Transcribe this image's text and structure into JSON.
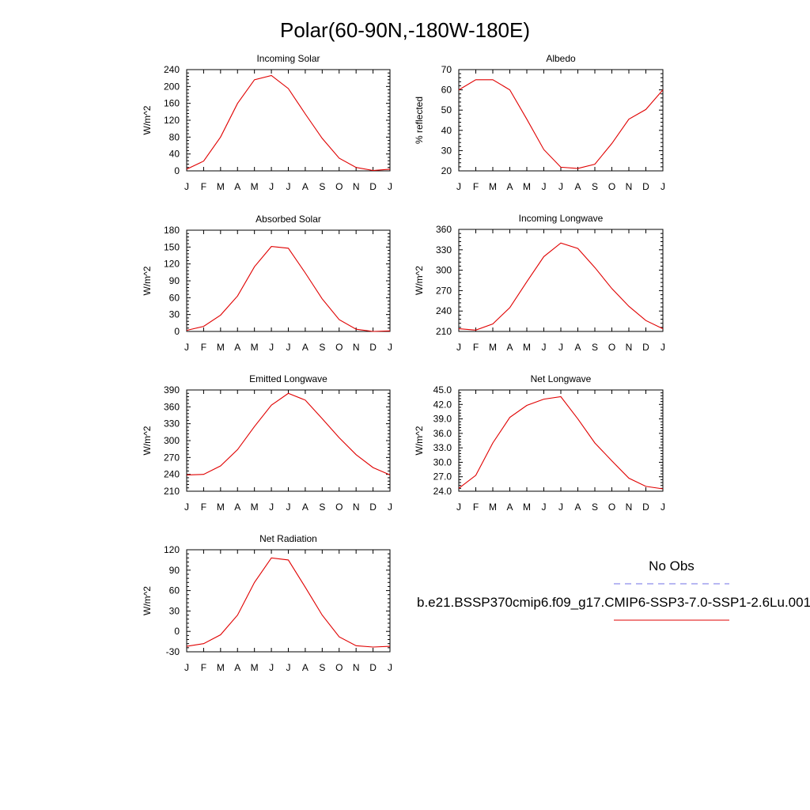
{
  "figure": {
    "title": "Polar(60-90N,-180W-180E)"
  },
  "legend": {
    "obs_label": "No Obs",
    "obs_color": "#6f6fe6",
    "model_label": "b.e21.BSSP370cmip6.f09_g17.CMIP6-SSP3-7.0-SSP1-2.6Lu.001",
    "model_color": "#e00000"
  },
  "chart_data": [
    {
      "type": "line",
      "title": "Incoming Solar",
      "ylabel": "W/m^2",
      "x": [
        "J",
        "F",
        "M",
        "A",
        "M",
        "J",
        "J",
        "A",
        "S",
        "O",
        "N",
        "D",
        "J"
      ],
      "ylim": [
        0,
        240
      ],
      "yticks": [
        "0",
        "40",
        "80",
        "120",
        "160",
        "200",
        "240"
      ],
      "series": [
        {
          "color": "#e00000",
          "values": [
            4,
            23,
            80,
            160,
            216,
            226,
            195,
            135,
            77,
            30,
            8,
            1,
            4
          ]
        }
      ]
    },
    {
      "type": "line",
      "title": "Albedo",
      "ylabel": "% reflected",
      "x": [
        "J",
        "F",
        "M",
        "A",
        "M",
        "J",
        "J",
        "A",
        "S",
        "O",
        "N",
        "D",
        "J"
      ],
      "ylim": [
        20,
        70
      ],
      "yticks": [
        "20",
        "30",
        "40",
        "50",
        "60",
        "70"
      ],
      "series": [
        {
          "color": "#e00000",
          "values": [
            60,
            65,
            65,
            60,
            45.5,
            30.5,
            21.8,
            21.2,
            23.3,
            33.5,
            45.5,
            50.3,
            60
          ]
        }
      ]
    },
    {
      "type": "line",
      "title": "Absorbed Solar",
      "ylabel": "W/m^2",
      "x": [
        "J",
        "F",
        "M",
        "A",
        "M",
        "J",
        "J",
        "A",
        "S",
        "O",
        "N",
        "D",
        "J"
      ],
      "ylim": [
        0,
        180
      ],
      "yticks": [
        "0",
        "30",
        "60",
        "90",
        "120",
        "150",
        "180"
      ],
      "series": [
        {
          "color": "#e00000",
          "values": [
            2,
            9,
            29,
            63,
            115,
            151,
            148,
            104,
            58,
            21,
            4,
            0,
            1
          ]
        }
      ]
    },
    {
      "type": "line",
      "title": "Incoming Longwave",
      "ylabel": "W/m^2",
      "x": [
        "J",
        "F",
        "M",
        "A",
        "M",
        "J",
        "J",
        "A",
        "S",
        "O",
        "N",
        "D",
        "J"
      ],
      "ylim": [
        210,
        360
      ],
      "yticks": [
        "210",
        "240",
        "270",
        "300",
        "330",
        "360"
      ],
      "series": [
        {
          "color": "#e00000",
          "values": [
            214,
            212,
            221,
            245,
            283,
            320,
            340,
            332,
            304,
            273,
            247,
            226,
            214
          ]
        }
      ]
    },
    {
      "type": "line",
      "title": "Emitted Longwave",
      "ylabel": "W/m^2",
      "x": [
        "J",
        "F",
        "M",
        "A",
        "M",
        "J",
        "J",
        "A",
        "S",
        "O",
        "N",
        "D",
        "J"
      ],
      "ylim": [
        210,
        390
      ],
      "yticks": [
        "210",
        "240",
        "270",
        "300",
        "330",
        "360",
        "390"
      ],
      "series": [
        {
          "color": "#e00000",
          "values": [
            239,
            240,
            255,
            284,
            325,
            363,
            384,
            372,
            339,
            305,
            275,
            252,
            239
          ]
        }
      ]
    },
    {
      "type": "line",
      "title": "Net Longwave",
      "ylabel": "W/m^2",
      "x": [
        "J",
        "F",
        "M",
        "A",
        "M",
        "J",
        "J",
        "A",
        "S",
        "O",
        "N",
        "D",
        "J"
      ],
      "ylim": [
        24,
        45
      ],
      "yticks": [
        "24.0",
        "27.0",
        "30.0",
        "33.0",
        "36.0",
        "39.0",
        "42.0",
        "45.0"
      ],
      "series": [
        {
          "color": "#e00000",
          "values": [
            24.6,
            27.3,
            34.0,
            39.3,
            41.8,
            43.1,
            43.6,
            39.0,
            34.0,
            30.3,
            26.7,
            25.0,
            24.5
          ]
        }
      ]
    },
    {
      "type": "line",
      "title": "Net Radiation",
      "ylabel": "W/m^2",
      "x": [
        "J",
        "F",
        "M",
        "A",
        "M",
        "J",
        "J",
        "A",
        "S",
        "O",
        "N",
        "D",
        "J"
      ],
      "ylim": [
        -30,
        120
      ],
      "yticks": [
        "-30",
        "0",
        "30",
        "60",
        "90",
        "120"
      ],
      "series": [
        {
          "color": "#e00000",
          "values": [
            -22,
            -18,
            -5,
            24,
            72,
            108,
            105,
            65,
            24,
            -8,
            -21,
            -23,
            -22
          ]
        }
      ]
    }
  ]
}
